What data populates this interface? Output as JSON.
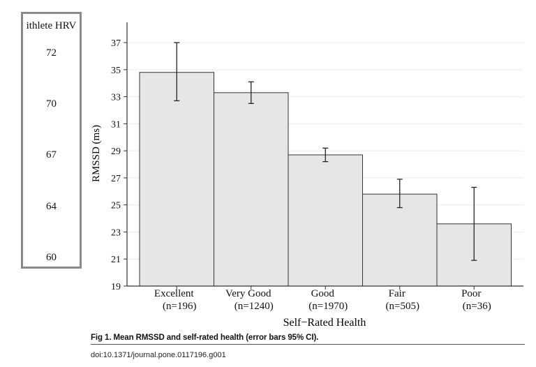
{
  "side_panel": {
    "title": "ithlete HRV",
    "values": [
      "72",
      "70",
      "67",
      "64",
      "60"
    ]
  },
  "chart_data": {
    "type": "bar",
    "categories": [
      "Excellent",
      "Very Good",
      "Good",
      "Fair",
      "Poor"
    ],
    "category_counts": [
      "(n=196)",
      "(n=1240)",
      "(n=1970)",
      "(n=505)",
      "(n=36)"
    ],
    "values": [
      34.8,
      33.3,
      28.7,
      25.8,
      23.6
    ],
    "error_low": [
      32.7,
      32.5,
      28.2,
      24.8,
      20.9
    ],
    "error_high": [
      37.0,
      34.1,
      29.2,
      26.9,
      26.3
    ],
    "xlabel": "Self−Rated Health",
    "ylabel": "RMSSD (ms)",
    "ylim": [
      19,
      38.5
    ],
    "yticks": [
      19,
      21,
      23,
      25,
      27,
      29,
      31,
      33,
      35,
      37
    ],
    "grid": true,
    "bar_color": "#e6e6e6",
    "bar_edge_color": "#333333",
    "grid_color": "#ececec"
  },
  "caption": "Fig 1. Mean RMSSD and self-rated health (error bars 95% CI).",
  "doi": "doi:10.1371/journal.pone.0117196.g001"
}
